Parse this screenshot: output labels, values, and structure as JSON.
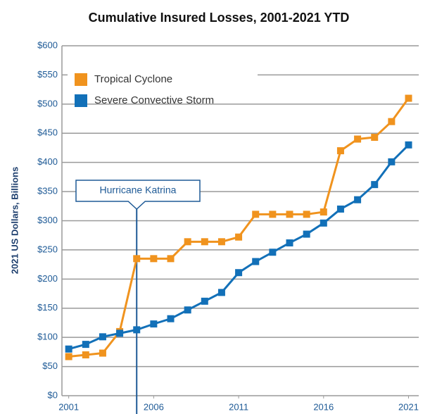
{
  "chart_data": {
    "type": "line",
    "title": "Cumulative Insured Losses, 2001-2021 YTD",
    "ylabel": "2021 US Dollars, Billions",
    "x": [
      2001,
      2002,
      2003,
      2004,
      2005,
      2006,
      2007,
      2008,
      2009,
      2010,
      2011,
      2012,
      2013,
      2014,
      2015,
      2016,
      2017,
      2018,
      2019,
      2020,
      2021
    ],
    "series": [
      {
        "name": "Tropical Cyclone",
        "color": "#f0931e",
        "values": [
          67,
          70,
          73,
          110,
          235,
          235,
          235,
          264,
          264,
          264,
          272,
          311,
          311,
          311,
          311,
          315,
          420,
          440,
          443,
          470,
          510
        ]
      },
      {
        "name": "Severe Convective Storm",
        "color": "#1270b8",
        "values": [
          80,
          88,
          101,
          107,
          113,
          123,
          132,
          147,
          162,
          177,
          211,
          230,
          246,
          262,
          277,
          296,
          320,
          336,
          362,
          401,
          430
        ]
      }
    ],
    "xlim": [
      2000.6,
      2021.6
    ],
    "xticks": [
      2001,
      2006,
      2011,
      2016,
      2021
    ],
    "ylim": [
      0,
      600
    ],
    "yticks": [
      {
        "value": 0,
        "label": "$0"
      },
      {
        "value": 50,
        "label": "$50"
      },
      {
        "value": 100,
        "label": "$100"
      },
      {
        "value": 150,
        "label": "$150"
      },
      {
        "value": 200,
        "label": "$200"
      },
      {
        "value": 250,
        "label": "$250"
      },
      {
        "value": 300,
        "label": "$300"
      },
      {
        "value": 350,
        "label": "$350"
      },
      {
        "value": 400,
        "label": "$400"
      },
      {
        "value": 450,
        "label": "$450"
      },
      {
        "value": 500,
        "label": "$500"
      },
      {
        "value": 550,
        "label": "$550"
      },
      {
        "value": 600,
        "label": "$600"
      }
    ],
    "grid": true,
    "legend": "upper left",
    "annotation": {
      "text": "Hurricane Katrina",
      "x": 2005
    }
  }
}
